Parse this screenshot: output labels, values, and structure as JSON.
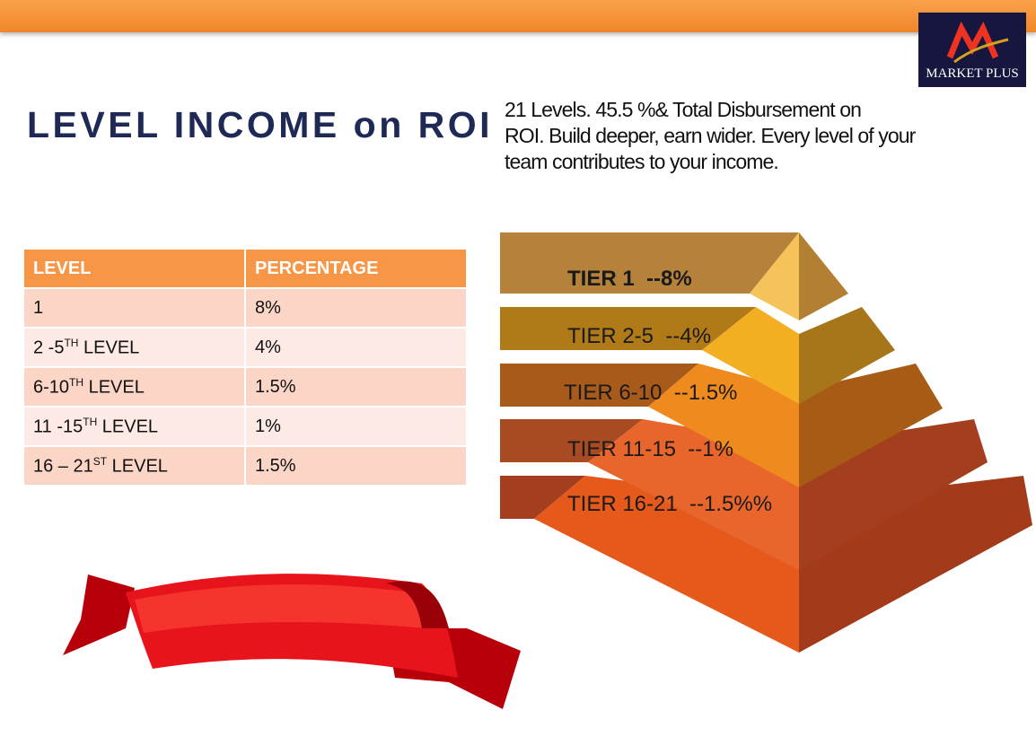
{
  "logo": {
    "text": "MARKET PLUS"
  },
  "header": {
    "title": "LEVEL INCOME on ROI",
    "description_lines": [
      "21 Levels. 45.5 %& Total Disbursement  on",
      "ROI. Build deeper, earn wider. Every level of your",
      "team contributes  to your income."
    ]
  },
  "table": {
    "columns": [
      "LEVEL",
      "PERCENTAGE"
    ],
    "rows": [
      [
        {
          "text": "1"
        },
        "8%"
      ],
      [
        {
          "text": "2 -5",
          "sup": "TH",
          "after": " LEVEL"
        },
        "4%"
      ],
      [
        {
          "text": "6-10",
          "sup": "TH",
          "after": " LEVEL"
        },
        "1.5%"
      ],
      [
        {
          "text": "11 -15",
          "sup": "TH",
          "after": " LEVEL"
        },
        "1%"
      ],
      [
        {
          "text": "16 – 21",
          "sup": "ST",
          "after": " LEVEL"
        },
        "1.5%"
      ]
    ]
  },
  "pyramid": {
    "tiers": [
      "TIER 1  --8%",
      "TIER 2-5  --4%",
      "TIER 6-10  --1.5%",
      "TIER 11-15  --1%",
      "TIER 16-21  --1.5%%"
    ]
  }
}
